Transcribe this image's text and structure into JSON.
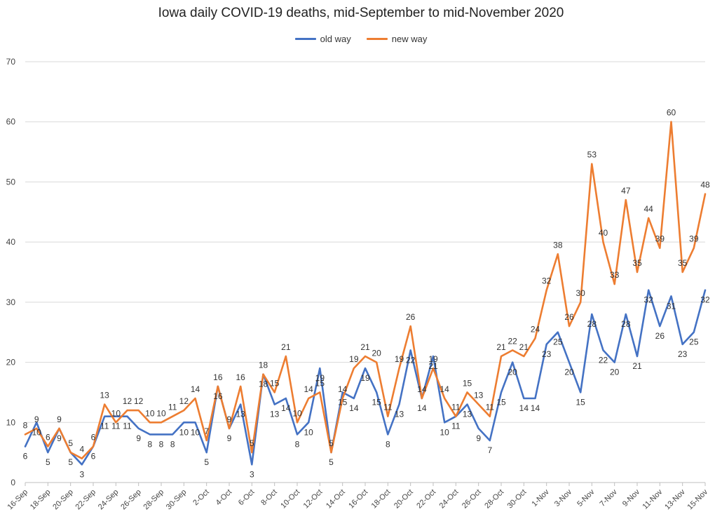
{
  "colors": {
    "old": "#4472C4",
    "new": "#ED7D31",
    "grid": "#D9D9D9",
    "axis": "#BFBFBF"
  },
  "chart_data": {
    "type": "line",
    "title": "Iowa daily COVID-19 deaths, mid-September to mid-November 2020",
    "xlabel": "",
    "ylabel": "",
    "ylim": [
      0,
      70
    ],
    "yticks": [
      0,
      10,
      20,
      30,
      40,
      50,
      60,
      70
    ],
    "grid": true,
    "legend": "top-center",
    "categories": [
      "16-Sep",
      "17-Sep",
      "18-Sep",
      "19-Sep",
      "20-Sep",
      "21-Sep",
      "22-Sep",
      "23-Sep",
      "24-Sep",
      "25-Sep",
      "26-Sep",
      "27-Sep",
      "28-Sep",
      "29-Sep",
      "30-Sep",
      "1-Oct",
      "2-Oct",
      "3-Oct",
      "4-Oct",
      "5-Oct",
      "6-Oct",
      "7-Oct",
      "8-Oct",
      "9-Oct",
      "10-Oct",
      "11-Oct",
      "12-Oct",
      "13-Oct",
      "14-Oct",
      "15-Oct",
      "16-Oct",
      "17-Oct",
      "18-Oct",
      "19-Oct",
      "20-Oct",
      "21-Oct",
      "22-Oct",
      "23-Oct",
      "24-Oct",
      "25-Oct",
      "26-Oct",
      "27-Oct",
      "28-Oct",
      "29-Oct",
      "30-Oct",
      "31-Oct",
      "1-Nov",
      "2-Nov",
      "3-Nov",
      "4-Nov",
      "5-Nov",
      "6-Nov",
      "7-Nov",
      "8-Nov",
      "9-Nov",
      "10-Nov",
      "11-Nov",
      "12-Nov",
      "13-Nov",
      "14-Nov",
      "15-Nov"
    ],
    "tick_labels": [
      "16-Sep",
      "18-Sep",
      "20-Sep",
      "22-Sep",
      "24-Sep",
      "26-Sep",
      "28-Sep",
      "30-Sep",
      "2-Oct",
      "4-Oct",
      "6-Oct",
      "8-Oct",
      "10-Oct",
      "12-Oct",
      "14-Oct",
      "16-Oct",
      "18-Oct",
      "20-Oct",
      "22-Oct",
      "24-Oct",
      "26-Oct",
      "28-Oct",
      "30-Oct",
      "1-Nov",
      "3-Nov",
      "5-Nov",
      "7-Nov",
      "9-Nov",
      "11-Nov",
      "13-Nov",
      "15-Nov"
    ],
    "series": [
      {
        "name": "old way",
        "values": [
          6,
          10,
          5,
          9,
          5,
          3,
          6,
          11,
          11,
          11,
          9,
          8,
          8,
          8,
          10,
          10,
          5,
          16,
          9,
          13,
          3,
          18,
          13,
          14,
          8,
          10,
          19,
          5,
          15,
          14,
          19,
          15,
          8,
          13,
          22,
          14,
          21,
          10,
          11,
          13,
          9,
          7,
          15,
          20,
          14,
          14,
          23,
          25,
          20,
          15,
          28,
          22,
          20,
          28,
          21,
          32,
          26,
          31,
          23,
          25,
          32
        ]
      },
      {
        "name": "new way",
        "values": [
          8,
          9,
          6,
          9,
          5,
          4,
          6,
          13,
          10,
          12,
          12,
          10,
          10,
          11,
          12,
          14,
          7,
          16,
          9,
          16,
          5,
          18,
          15,
          21,
          10,
          14,
          15,
          5,
          14,
          19,
          21,
          20,
          11,
          19,
          26,
          14,
          19,
          14,
          11,
          15,
          13,
          11,
          21,
          22,
          21,
          24,
          32,
          38,
          26,
          30,
          53,
          40,
          33,
          47,
          35,
          44,
          39,
          60,
          35,
          39,
          48
        ]
      }
    ]
  }
}
